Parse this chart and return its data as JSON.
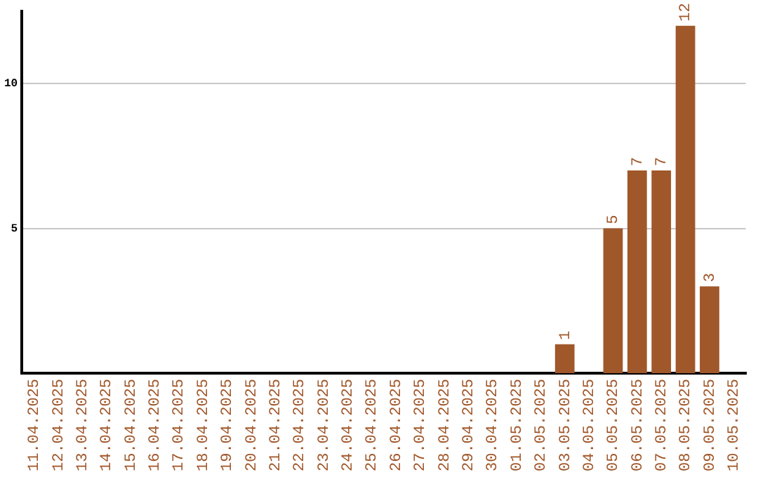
{
  "chart_data": {
    "type": "bar",
    "categories": [
      "11.04.2025",
      "12.04.2025",
      "13.04.2025",
      "14.04.2025",
      "15.04.2025",
      "16.04.2025",
      "17.04.2025",
      "18.04.2025",
      "19.04.2025",
      "20.04.2025",
      "21.04.2025",
      "22.04.2025",
      "23.04.2025",
      "24.04.2025",
      "25.04.2025",
      "26.04.2025",
      "27.04.2025",
      "28.04.2025",
      "29.04.2025",
      "30.04.2025",
      "01.05.2025",
      "02.05.2025",
      "03.05.2025",
      "04.05.2025",
      "05.05.2025",
      "06.05.2025",
      "07.05.2025",
      "08.05.2025",
      "09.05.2025",
      "10.05.2025"
    ],
    "values": [
      0,
      0,
      0,
      0,
      0,
      0,
      0,
      0,
      0,
      0,
      0,
      0,
      0,
      0,
      0,
      0,
      0,
      0,
      0,
      0,
      0,
      0,
      1,
      0,
      5,
      7,
      7,
      12,
      3,
      0
    ],
    "value_labels": [
      null,
      null,
      null,
      null,
      null,
      null,
      null,
      null,
      null,
      null,
      null,
      null,
      null,
      null,
      null,
      null,
      null,
      null,
      null,
      null,
      null,
      null,
      "1",
      null,
      "5",
      "7",
      "7",
      "12",
      "3",
      null
    ],
    "color": "#a0572a",
    "ylim": [
      0,
      12.5
    ],
    "yticks": [
      5,
      10
    ],
    "grid": "y",
    "legend": false
  }
}
